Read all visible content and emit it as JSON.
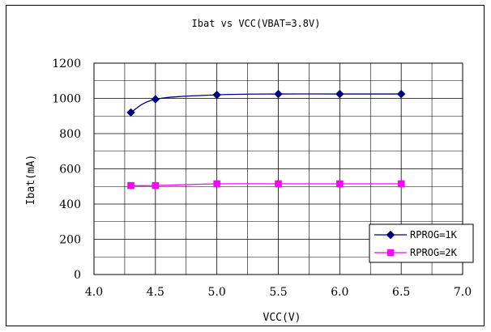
{
  "chart_data": {
    "type": "line",
    "title": "Ibat vs VCC(VBAT=3.8V)",
    "xlabel": "VCC(V)",
    "ylabel": "Ibat(mA)",
    "xlim": [
      4.0,
      7.0
    ],
    "ylim": [
      0,
      1200
    ],
    "xticks": [
      4.0,
      4.5,
      5.0,
      5.5,
      6.0,
      6.5,
      7.0
    ],
    "xtick_labels": [
      "4.0",
      "4.5",
      "5.0",
      "5.5",
      "6.0",
      "6.5",
      "7.0"
    ],
    "yticks": [
      0,
      200,
      400,
      600,
      800,
      1000,
      1200
    ],
    "ytick_labels": [
      "0",
      "200",
      "400",
      "600",
      "800",
      "1000",
      "1200"
    ],
    "grid": true,
    "legend": "bottom-right",
    "series": [
      {
        "name": "RPROG=1K",
        "color": "#000080",
        "marker": "diamond",
        "x": [
          4.3,
          4.5,
          5.0,
          5.5,
          6.0,
          6.5
        ],
        "y": [
          920,
          995,
          1020,
          1025,
          1025,
          1025
        ]
      },
      {
        "name": "RPROG=2K",
        "color": "#ff00ff",
        "marker": "square",
        "x": [
          4.3,
          4.5,
          5.0,
          5.5,
          6.0,
          6.5
        ],
        "y": [
          505,
          505,
          515,
          515,
          515,
          515
        ]
      }
    ]
  }
}
